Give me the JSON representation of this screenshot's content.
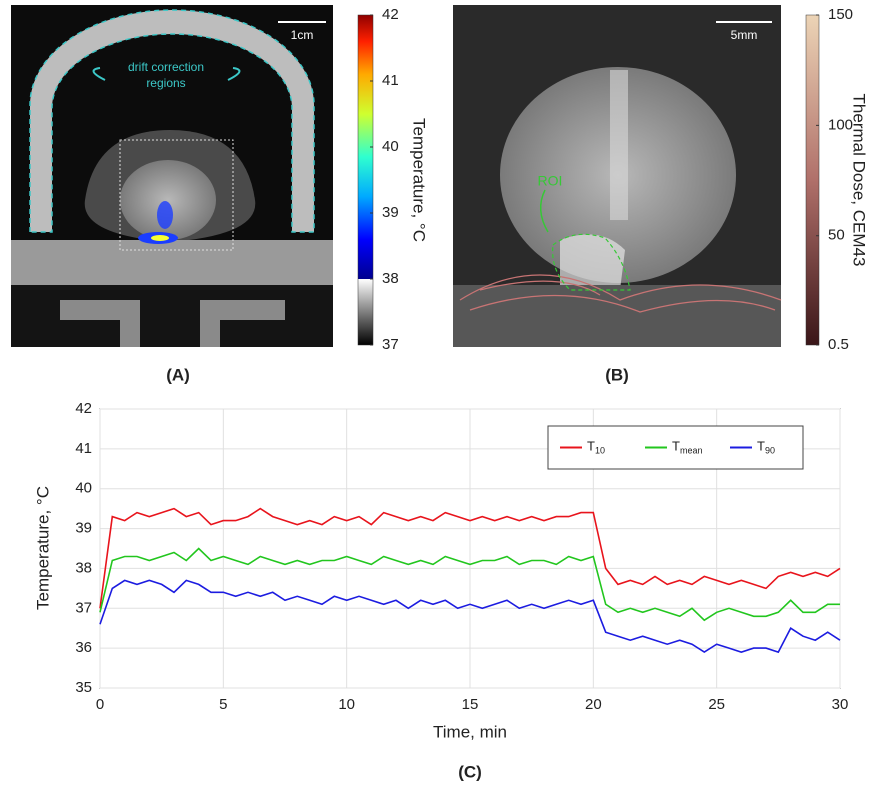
{
  "panel_a": {
    "label": "(A)",
    "scale_bar": "1cm",
    "annotation": [
      "drift correction",
      "regions"
    ],
    "colorbar": {
      "label": "Temperature, °C",
      "lim": [
        37,
        42
      ],
      "ticks": [
        37,
        38,
        39,
        40,
        41,
        42
      ]
    }
  },
  "panel_b": {
    "label": "(B)",
    "scale_bar": "5mm",
    "roi": "ROI",
    "colorbar": {
      "label": "Thermal Dose, CEM43",
      "lim": [
        0.5,
        150
      ],
      "ticks": [
        0.5,
        50,
        100,
        150
      ]
    }
  },
  "chart_data": {
    "type": "line",
    "label": "(C)",
    "xlabel": "Time, min",
    "ylabel": "Temperature, °C",
    "xlim": [
      0,
      30
    ],
    "ylim": [
      35,
      42
    ],
    "xticks": [
      0,
      5,
      10,
      15,
      20,
      25,
      30
    ],
    "yticks": [
      35,
      36,
      37,
      38,
      39,
      40,
      41,
      42
    ],
    "grid": true,
    "legend": "top-right",
    "x": [
      0,
      0.5,
      1,
      1.5,
      2,
      2.5,
      3,
      3.5,
      4,
      4.5,
      5,
      5.5,
      6,
      6.5,
      7,
      7.5,
      8,
      8.5,
      9,
      9.5,
      10,
      10.5,
      11,
      11.5,
      12,
      12.5,
      13,
      13.5,
      14,
      14.5,
      15,
      15.5,
      16,
      16.5,
      17,
      17.5,
      18,
      18.5,
      19,
      19.5,
      20,
      20.5,
      21,
      21.5,
      22,
      22.5,
      23,
      23.5,
      24,
      24.5,
      25,
      25.5,
      26,
      26.5,
      27,
      27.5,
      28,
      28.5,
      29,
      29.5,
      30
    ],
    "series": [
      {
        "name": "T10",
        "color": "#e8141c",
        "values": [
          37.0,
          39.3,
          39.2,
          39.4,
          39.3,
          39.4,
          39.5,
          39.3,
          39.4,
          39.1,
          39.2,
          39.2,
          39.3,
          39.5,
          39.3,
          39.2,
          39.1,
          39.2,
          39.1,
          39.3,
          39.2,
          39.3,
          39.1,
          39.4,
          39.3,
          39.2,
          39.3,
          39.2,
          39.4,
          39.3,
          39.2,
          39.3,
          39.2,
          39.3,
          39.2,
          39.3,
          39.2,
          39.3,
          39.3,
          39.4,
          39.4,
          38.0,
          37.6,
          37.7,
          37.6,
          37.8,
          37.6,
          37.7,
          37.6,
          37.8,
          37.7,
          37.6,
          37.7,
          37.6,
          37.5,
          37.8,
          37.9,
          37.8,
          37.9,
          37.8,
          38.0
        ]
      },
      {
        "name": "Tmean",
        "color": "#22c61e",
        "values": [
          36.9,
          38.2,
          38.3,
          38.3,
          38.2,
          38.3,
          38.4,
          38.2,
          38.5,
          38.2,
          38.3,
          38.2,
          38.1,
          38.3,
          38.2,
          38.1,
          38.2,
          38.1,
          38.2,
          38.2,
          38.3,
          38.2,
          38.1,
          38.3,
          38.2,
          38.1,
          38.2,
          38.1,
          38.3,
          38.2,
          38.1,
          38.2,
          38.2,
          38.3,
          38.1,
          38.2,
          38.2,
          38.1,
          38.3,
          38.2,
          38.3,
          37.1,
          36.9,
          37.0,
          36.9,
          37.0,
          36.9,
          36.8,
          37.0,
          36.7,
          36.9,
          37.0,
          36.9,
          36.8,
          36.8,
          36.9,
          37.2,
          36.9,
          36.9,
          37.1,
          37.1
        ]
      },
      {
        "name": "T90",
        "color": "#1c1ce0",
        "values": [
          36.6,
          37.5,
          37.7,
          37.6,
          37.7,
          37.6,
          37.4,
          37.7,
          37.6,
          37.4,
          37.4,
          37.3,
          37.4,
          37.3,
          37.4,
          37.2,
          37.3,
          37.2,
          37.1,
          37.3,
          37.2,
          37.3,
          37.2,
          37.1,
          37.2,
          37.0,
          37.2,
          37.1,
          37.2,
          37.0,
          37.1,
          37.0,
          37.1,
          37.2,
          37.0,
          37.1,
          37.0,
          37.1,
          37.2,
          37.1,
          37.2,
          36.4,
          36.3,
          36.2,
          36.3,
          36.2,
          36.1,
          36.2,
          36.1,
          35.9,
          36.1,
          36.0,
          35.9,
          36.0,
          36.0,
          35.9,
          36.5,
          36.3,
          36.2,
          36.4,
          36.2
        ]
      }
    ]
  }
}
